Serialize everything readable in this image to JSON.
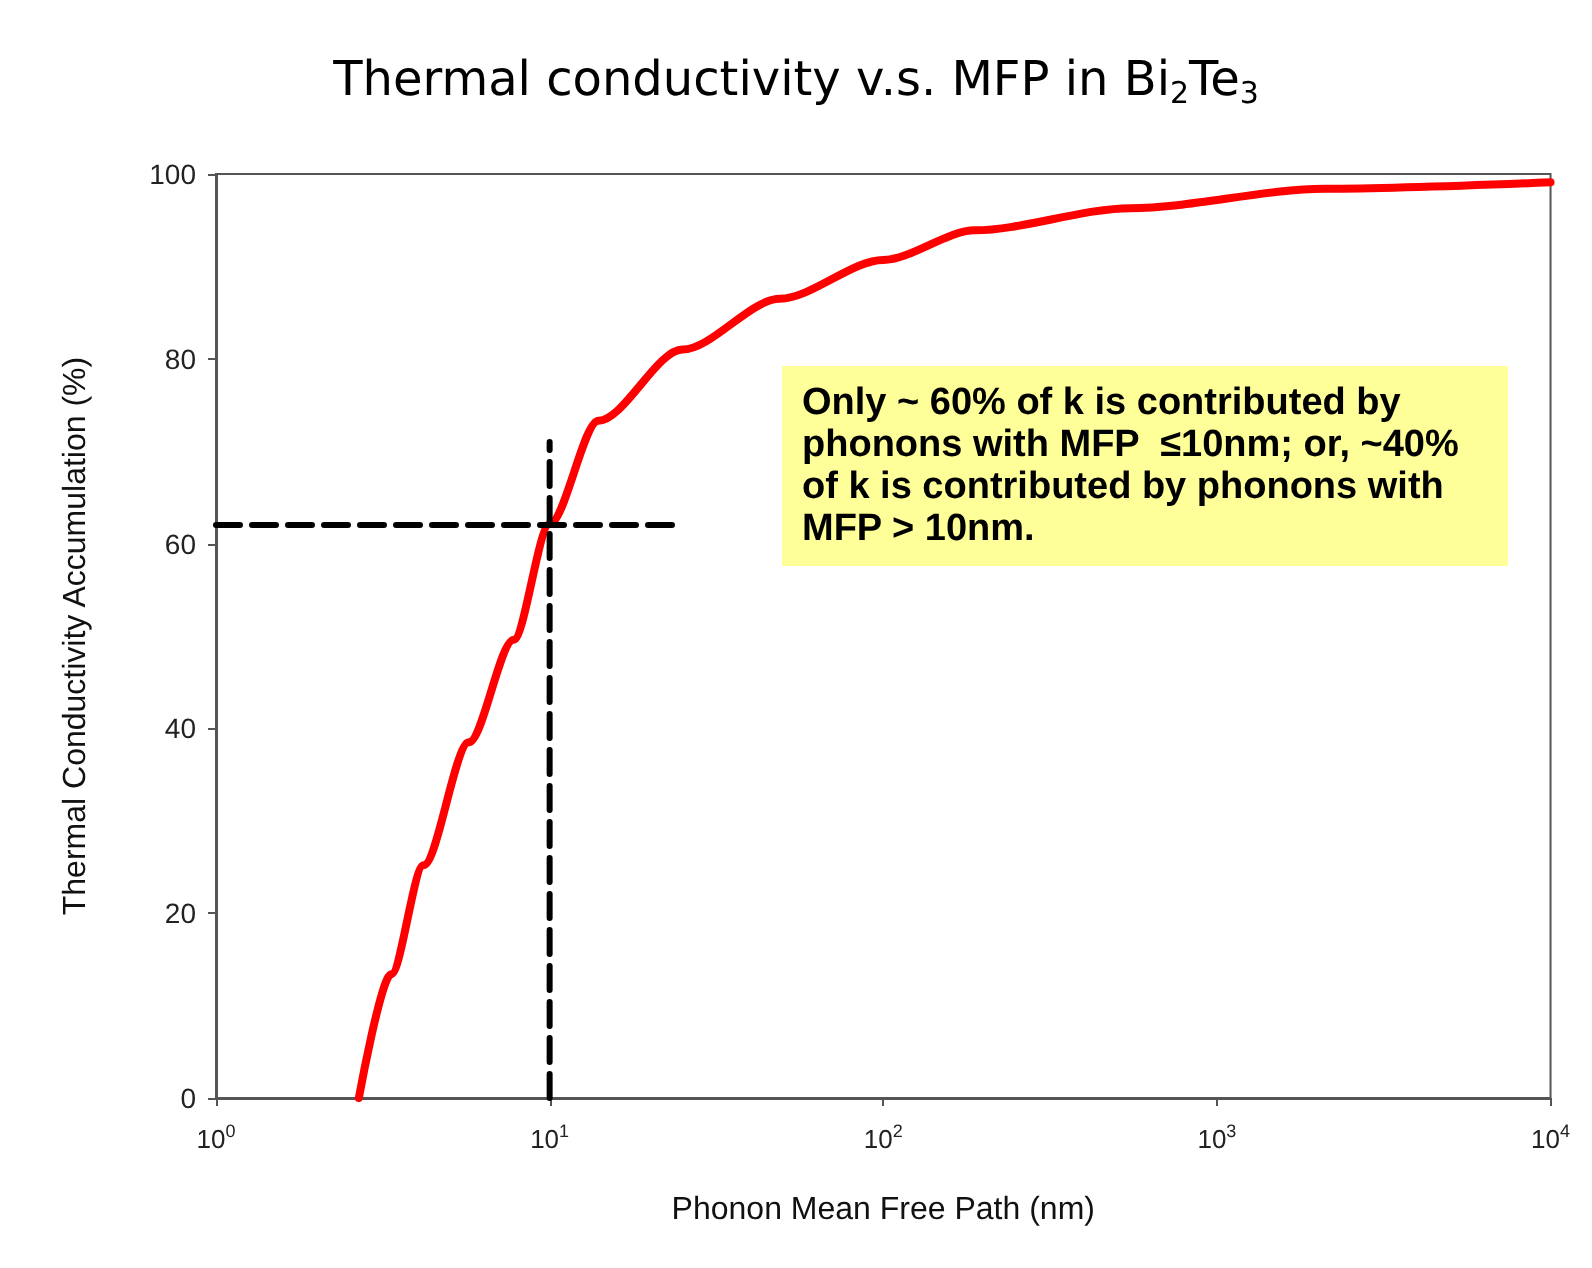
{
  "chart_data": {
    "type": "line",
    "title": "Thermal conductivity v.s. MFP in Bi$_{2}$Te$_{3}$",
    "xlabel": "Phonon Mean Free Path (nm)",
    "ylabel": "Thermal Conductivity Accumulation (%)",
    "log": "x",
    "grid": false,
    "marker": "none",
    "xlim": [
      1,
      10000
    ],
    "xticks": [
      {
        "value": 1,
        "label": "10$^{0}$"
      },
      {
        "value": 10,
        "label": "10$^{1}$"
      },
      {
        "value": 100,
        "label": "10$^{2}$"
      },
      {
        "value": 1000,
        "label": "10$^{3}$"
      },
      {
        "value": 10000,
        "label": "10$^{4}$"
      }
    ],
    "ylim": [
      0,
      100
    ],
    "yticks": [
      0,
      20,
      40,
      60,
      80,
      100
    ],
    "series": [
      {
        "color": "#ff0000",
        "line_style": "solid",
        "x": [
          2.68,
          3.35,
          4.19,
          5.73,
          7.8,
          10,
          14,
          25,
          49,
          100,
          188,
          550,
          2100,
          10000
        ],
        "values": [
          0,
          13.4,
          25.2,
          38.5,
          49.6,
          62.1,
          73.3,
          81,
          86.5,
          90.7,
          93.9,
          96.3,
          98.4,
          99.1
        ]
      },
      {
        "color": "#000000",
        "line_style": "dashed",
        "x": [
          10,
          10
        ],
        "values": [
          0,
          71
        ]
      },
      {
        "color": "#000000",
        "line_style": "dashed",
        "x": [
          1,
          24
        ],
        "values": [
          62,
          62
        ]
      }
    ],
    "annotations": [
      "Only ~ 60% of k is contributed by phonons with MFP  ≤10nm; or, ~40% of k is contributed by phonons with MFP > 10nm."
    ]
  }
}
